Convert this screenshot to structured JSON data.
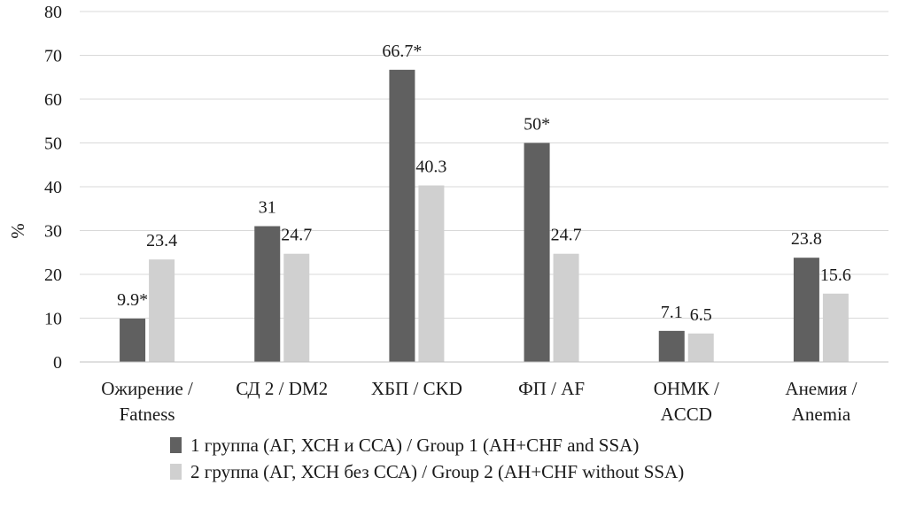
{
  "chart_data": {
    "type": "bar",
    "title": "",
    "xlabel": "",
    "ylabel": "%",
    "ylim": [
      0,
      80
    ],
    "yticks": [
      0,
      10,
      20,
      30,
      40,
      50,
      60,
      70,
      80
    ],
    "grid": true,
    "legend_position": "bottom",
    "categories": [
      [
        "Ожирение /",
        "Fatness"
      ],
      [
        "СД 2 / DM2"
      ],
      [
        "ХБП / CKD"
      ],
      [
        "ФП / AF"
      ],
      [
        "ОНМК /",
        "ACCD"
      ],
      [
        "Анемия /",
        "Anemia"
      ]
    ],
    "series": [
      {
        "name": "1 группа (АГ, ХСН и ССА) / Group 1 (AH+CHF and SSA)",
        "color": "#606060",
        "values": [
          9.9,
          31,
          66.7,
          50,
          7.1,
          23.8
        ],
        "labels": [
          "9.9*",
          "31",
          "66.7*",
          "50*",
          "7.1",
          "23.8"
        ]
      },
      {
        "name": "2 группа (АГ, ХСН без ССА) / Group 2 (AH+CHF without SSA)",
        "color": "#d0d0d0",
        "values": [
          23.4,
          24.7,
          40.3,
          24.7,
          6.5,
          15.6
        ],
        "labels": [
          "23.4",
          "24.7",
          "40.3",
          "24.7",
          "6.5",
          "15.6"
        ]
      }
    ]
  }
}
